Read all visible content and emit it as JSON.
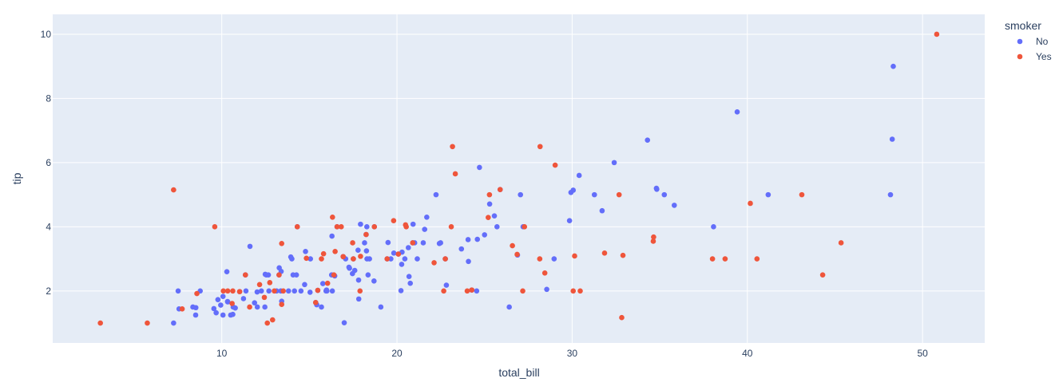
{
  "chart_data": {
    "type": "scatter",
    "title": "",
    "xlabel": "total_bill",
    "ylabel": "tip",
    "xlim": [
      0.35,
      53.55
    ],
    "ylim": [
      0.38,
      10.62
    ],
    "xticks": [
      10,
      20,
      30,
      40,
      50
    ],
    "yticks": [
      2,
      4,
      6,
      8,
      10
    ],
    "grid": true,
    "legend": {
      "title": "smoker",
      "placement": "top-right"
    },
    "series": [
      {
        "name": "No",
        "color": "#636efa",
        "points": [
          [
            7.25,
            1.0
          ],
          [
            7.51,
            2.0
          ],
          [
            7.56,
            1.44
          ],
          [
            8.35,
            1.5
          ],
          [
            8.51,
            1.25
          ],
          [
            8.52,
            1.48
          ],
          [
            8.77,
            2.0
          ],
          [
            9.55,
            1.45
          ],
          [
            9.68,
            1.32
          ],
          [
            9.78,
            1.73
          ],
          [
            10.07,
            1.25
          ],
          [
            10.07,
            1.83
          ],
          [
            10.29,
            2.6
          ],
          [
            10.33,
            1.67
          ],
          [
            10.34,
            1.66
          ],
          [
            10.63,
            1.27
          ],
          [
            10.65,
            1.5
          ],
          [
            10.77,
            1.47
          ],
          [
            11.35,
            2.5
          ],
          [
            11.38,
            2.0
          ],
          [
            11.61,
            3.39
          ],
          [
            11.87,
            1.63
          ],
          [
            11.02,
            1.98
          ],
          [
            12.02,
            1.97
          ],
          [
            12.03,
            1.5
          ],
          [
            12.26,
            2.0
          ],
          [
            12.46,
            1.5
          ],
          [
            12.48,
            2.52
          ],
          [
            12.54,
            2.5
          ],
          [
            12.69,
            2.0
          ],
          [
            12.66,
            2.5
          ],
          [
            13.13,
            2.0
          ],
          [
            13.27,
            2.5
          ],
          [
            13.28,
            2.72
          ],
          [
            13.37,
            2.0
          ],
          [
            13.39,
            2.61
          ],
          [
            13.42,
            1.68
          ],
          [
            13.81,
            2.0
          ],
          [
            14.0,
            3.0
          ],
          [
            14.07,
            2.5
          ],
          [
            14.15,
            2.0
          ],
          [
            14.26,
            2.5
          ],
          [
            14.31,
            4.0
          ],
          [
            14.52,
            2.0
          ],
          [
            14.73,
            2.2
          ],
          [
            14.78,
            3.23
          ],
          [
            15.04,
            1.96
          ],
          [
            15.06,
            3.0
          ],
          [
            15.36,
            1.64
          ],
          [
            15.42,
            1.57
          ],
          [
            15.69,
            1.5
          ],
          [
            15.77,
            2.23
          ],
          [
            15.95,
            2.0
          ],
          [
            15.98,
            2.03
          ],
          [
            16.0,
            2.0
          ],
          [
            16.27,
            2.5
          ],
          [
            16.29,
            3.71
          ],
          [
            16.31,
            2.0
          ],
          [
            16.45,
            2.47
          ],
          [
            16.58,
            4.0
          ],
          [
            16.93,
            3.07
          ],
          [
            16.99,
            1.01
          ],
          [
            17.07,
            3.0
          ],
          [
            17.26,
            2.74
          ],
          [
            17.29,
            2.71
          ],
          [
            17.46,
            2.54
          ],
          [
            17.59,
            2.64
          ],
          [
            17.78,
            3.27
          ],
          [
            17.81,
            2.34
          ],
          [
            17.82,
            1.75
          ],
          [
            17.92,
            4.08
          ],
          [
            18.15,
            3.5
          ],
          [
            18.24,
            3.76
          ],
          [
            18.26,
            3.25
          ],
          [
            18.28,
            4.0
          ],
          [
            18.29,
            3.0
          ],
          [
            18.43,
            3.0
          ],
          [
            18.69,
            2.31
          ],
          [
            18.71,
            4.0
          ],
          [
            19.08,
            1.5
          ],
          [
            19.44,
            3.0
          ],
          [
            19.49,
            3.51
          ],
          [
            19.65,
            3.0
          ],
          [
            19.82,
            3.18
          ],
          [
            20.08,
            3.15
          ],
          [
            20.23,
            2.01
          ],
          [
            20.27,
            2.83
          ],
          [
            20.29,
            3.21
          ],
          [
            20.65,
            3.35
          ],
          [
            20.69,
            2.45
          ],
          [
            20.76,
            2.24
          ],
          [
            20.9,
            3.5
          ],
          [
            21.01,
            3.5
          ],
          [
            21.16,
            3.0
          ],
          [
            21.5,
            3.5
          ],
          [
            21.58,
            3.92
          ],
          [
            21.7,
            4.3
          ],
          [
            22.23,
            5.0
          ],
          [
            22.42,
            3.48
          ],
          [
            22.49,
            3.5
          ],
          [
            22.76,
            3.0
          ],
          [
            22.82,
            2.18
          ],
          [
            23.68,
            3.31
          ],
          [
            24.06,
            3.6
          ],
          [
            24.08,
            2.92
          ],
          [
            24.55,
            2.0
          ],
          [
            24.59,
            3.61
          ],
          [
            24.71,
            5.85
          ],
          [
            25.0,
            3.75
          ],
          [
            25.29,
            4.71
          ],
          [
            25.56,
            4.34
          ],
          [
            25.71,
            4.0
          ],
          [
            26.41,
            1.5
          ],
          [
            26.88,
            3.12
          ],
          [
            27.05,
            5.0
          ],
          [
            27.2,
            4.0
          ],
          [
            28.55,
            2.05
          ],
          [
            28.97,
            3.0
          ],
          [
            29.85,
            4.19
          ],
          [
            29.93,
            5.07
          ],
          [
            30.4,
            5.6
          ],
          [
            31.27,
            5.0
          ],
          [
            31.71,
            4.5
          ],
          [
            32.4,
            6.0
          ],
          [
            34.3,
            6.7
          ],
          [
            34.81,
            5.2
          ],
          [
            34.83,
            5.17
          ],
          [
            35.26,
            5.0
          ],
          [
            35.83,
            4.67
          ],
          [
            38.07,
            4.0
          ],
          [
            39.42,
            7.58
          ],
          [
            41.19,
            5.0
          ],
          [
            48.17,
            5.0
          ],
          [
            48.27,
            6.73
          ],
          [
            48.33,
            9.0
          ],
          [
            10.51,
            1.25
          ],
          [
            15.48,
            2.02
          ],
          [
            20.92,
            4.08
          ],
          [
            25.89,
            5.16
          ],
          [
            17.51,
            3.0
          ],
          [
            24.27,
            2.03
          ],
          [
            30.06,
            5.14
          ],
          [
            18.35,
            2.5
          ],
          [
            9.94,
            1.56
          ],
          [
            13.94,
            3.06
          ],
          [
            20.45,
            3.0
          ],
          [
            11.24,
            1.76
          ]
        ]
      },
      {
        "name": "Yes",
        "color": "#ef553b",
        "points": [
          [
            3.07,
            1.0
          ],
          [
            5.75,
            1.0
          ],
          [
            7.25,
            5.15
          ],
          [
            7.74,
            1.44
          ],
          [
            8.58,
            1.92
          ],
          [
            9.6,
            4.0
          ],
          [
            10.09,
            2.0
          ],
          [
            10.34,
            2.0
          ],
          [
            10.59,
            1.61
          ],
          [
            10.63,
            2.0
          ],
          [
            11.02,
            1.98
          ],
          [
            11.35,
            2.5
          ],
          [
            11.59,
            1.5
          ],
          [
            12.16,
            2.2
          ],
          [
            12.6,
            1.0
          ],
          [
            12.9,
            1.1
          ],
          [
            12.74,
            2.26
          ],
          [
            13.0,
            2.0
          ],
          [
            13.27,
            2.5
          ],
          [
            13.42,
            3.48
          ],
          [
            13.42,
            1.58
          ],
          [
            13.51,
            2.0
          ],
          [
            14.31,
            4.0
          ],
          [
            15.36,
            1.64
          ],
          [
            15.48,
            2.02
          ],
          [
            15.69,
            3.0
          ],
          [
            15.81,
            3.16
          ],
          [
            16.47,
            3.23
          ],
          [
            16.04,
            2.24
          ],
          [
            16.58,
            4.0
          ],
          [
            16.82,
            4.0
          ],
          [
            16.32,
            4.3
          ],
          [
            16.4,
            2.5
          ],
          [
            17.47,
            3.5
          ],
          [
            17.51,
            3.0
          ],
          [
            17.89,
            2.0
          ],
          [
            18.24,
            3.76
          ],
          [
            18.71,
            4.0
          ],
          [
            19.44,
            3.0
          ],
          [
            19.81,
            4.19
          ],
          [
            20.49,
            4.06
          ],
          [
            20.53,
            4.0
          ],
          [
            20.9,
            3.5
          ],
          [
            22.12,
            2.88
          ],
          [
            22.67,
            2.0
          ],
          [
            23.17,
            6.5
          ],
          [
            23.33,
            5.65
          ],
          [
            23.1,
            4.0
          ],
          [
            24.01,
            2.0
          ],
          [
            24.27,
            2.03
          ],
          [
            25.21,
            4.29
          ],
          [
            25.28,
            5.0
          ],
          [
            25.89,
            5.16
          ],
          [
            26.59,
            3.41
          ],
          [
            26.86,
            3.14
          ],
          [
            27.18,
            2.0
          ],
          [
            27.28,
            4.0
          ],
          [
            28.15,
            3.0
          ],
          [
            28.17,
            6.5
          ],
          [
            28.44,
            2.56
          ],
          [
            29.03,
            5.92
          ],
          [
            30.14,
            3.09
          ],
          [
            30.06,
            2.0
          ],
          [
            30.46,
            2.0
          ],
          [
            31.85,
            3.18
          ],
          [
            32.68,
            5.0
          ],
          [
            32.83,
            1.17
          ],
          [
            32.9,
            3.11
          ],
          [
            34.63,
            3.55
          ],
          [
            34.65,
            3.68
          ],
          [
            38.01,
            3.0
          ],
          [
            38.73,
            3.0
          ],
          [
            40.17,
            4.73
          ],
          [
            40.55,
            3.0
          ],
          [
            43.11,
            5.0
          ],
          [
            44.3,
            2.5
          ],
          [
            45.35,
            3.5
          ],
          [
            50.81,
            10.0
          ],
          [
            12.43,
            1.8
          ],
          [
            14.83,
            3.02
          ],
          [
            17.92,
            3.08
          ],
          [
            20.08,
            3.15
          ],
          [
            22.76,
            3.0
          ],
          [
            16.93,
            3.07
          ]
        ]
      }
    ]
  }
}
